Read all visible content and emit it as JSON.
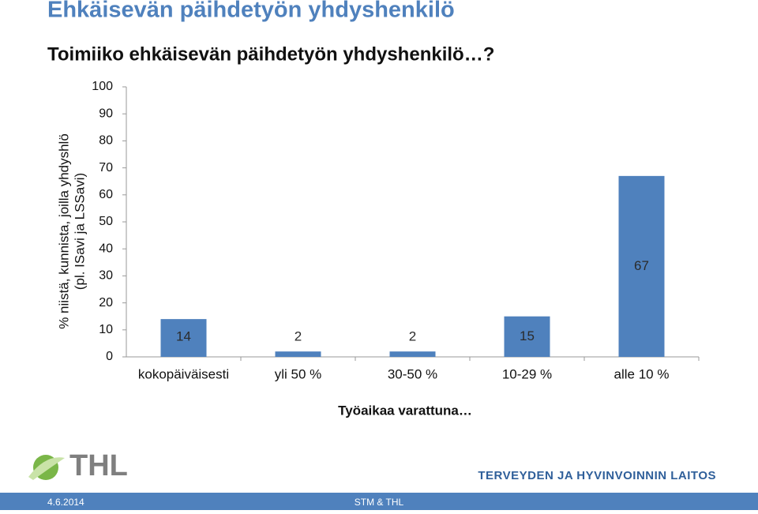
{
  "chart_data": {
    "type": "bar",
    "title": "Ehkäisevän päihdetyön yhdyshenkilö",
    "subtitle": "Toimiiko ehkäisevän päihdetyön yhdyshenkilö…?",
    "y_label": [
      "% niistä, kunnista, joilla yhdyshlö",
      "(pl. ISavi ja LSSavi)"
    ],
    "x_label": "Työaikaa varattuna…",
    "categories": [
      "kokopäiväisesti",
      "yli 50 %",
      "30-50 %",
      "10-29 %",
      "alle 10 %"
    ],
    "values": [
      14,
      2,
      2,
      15,
      67
    ],
    "color": "#4f81bd",
    "ylim": [
      0,
      100
    ],
    "yticks": [
      0,
      10,
      20,
      30,
      40,
      50,
      60,
      70,
      80,
      90,
      100
    ]
  },
  "footer": {
    "logo": "THL",
    "organization": "TERVEYDEN JA HYVINVOINNIN LAITOS",
    "date": "4.6.2014",
    "center": "STM & THL"
  }
}
